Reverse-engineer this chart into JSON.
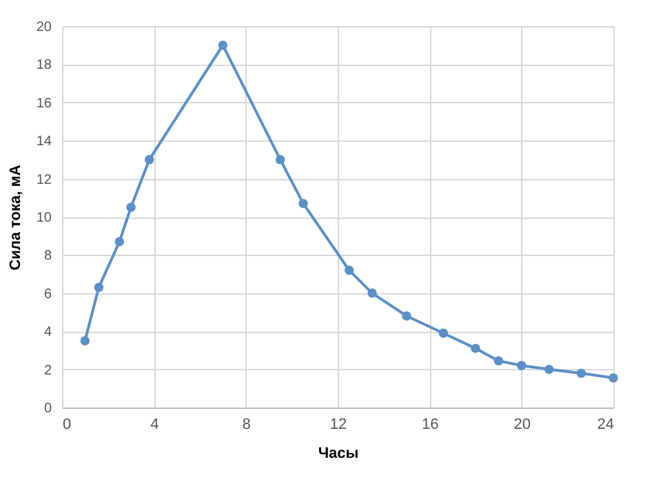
{
  "chart_data": {
    "type": "line",
    "xlabel": "Часы",
    "ylabel": "Сила тока, мА",
    "x": [
      1.0,
      1.6,
      2.5,
      3.0,
      3.8,
      7.0,
      9.5,
      10.5,
      12.5,
      13.5,
      15.0,
      16.6,
      18.0,
      19.0,
      20.0,
      21.2,
      22.6,
      24.0
    ],
    "series": [
      {
        "color": "#5b8fc7",
        "values": [
          3.5,
          6.3,
          8.7,
          10.5,
          13.0,
          19.0,
          13.0,
          10.7,
          7.2,
          6.0,
          4.8,
          3.9,
          3.1,
          2.45,
          2.2,
          2.0,
          1.8,
          1.55
        ]
      }
    ],
    "xlim": [
      0,
      24
    ],
    "xticks": [
      0,
      4,
      8,
      12,
      16,
      20,
      24
    ],
    "ylim": [
      0,
      20
    ],
    "yticks": [
      0,
      2,
      4,
      6,
      8,
      10,
      12,
      14,
      16,
      18,
      20
    ],
    "grid": true,
    "marker": "circle",
    "line_style": "solid"
  }
}
